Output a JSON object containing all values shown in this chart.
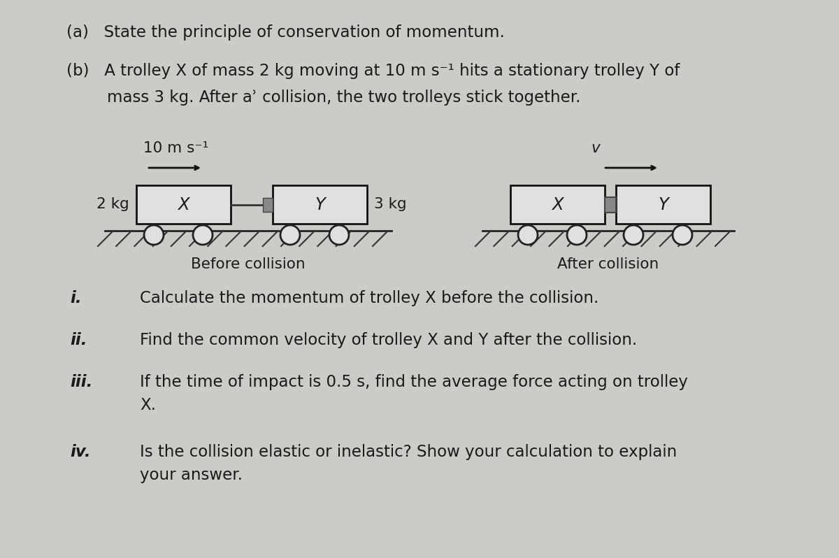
{
  "background_color": "#cccbc8",
  "text_color": "#1a1a1a",
  "title_a": "(a)   State the principle of conservation of momentum.",
  "title_b_line1": "(b)   A trolley X of mass 2 kg moving at 10 m s⁻¹ hits a stationary trolley Y of",
  "title_b_line2": "        mass 3 kg. After aʾ collision, the two trolleys stick together.",
  "velocity_before": "10 m s⁻¹",
  "mass_x": "2 kg",
  "mass_y": "3 kg",
  "label_x": "X",
  "label_y": "Y",
  "label_before": "Before collision",
  "label_after": "After collision",
  "velocity_after": "v",
  "sub_i": "i.",
  "text_i": "Calculate the momentum of trolley X before the collision.",
  "sub_ii": "ii.",
  "text_ii": "Find the common velocity of trolley X and Y after the collision.",
  "sub_iii": "iii.",
  "text_iii_line1": "If the time of impact is 0.5 s, find the average force acting on trolley",
  "text_iii_line2": "X.",
  "sub_iv": "iv.",
  "text_iv_line1": "Is the collision elastic or inelastic? Show your calculation to explain",
  "text_iv_line2": "your answer.",
  "main_fontsize": 16.5,
  "sub_fontsize": 16.5,
  "diagram_fontsize": 14.5
}
